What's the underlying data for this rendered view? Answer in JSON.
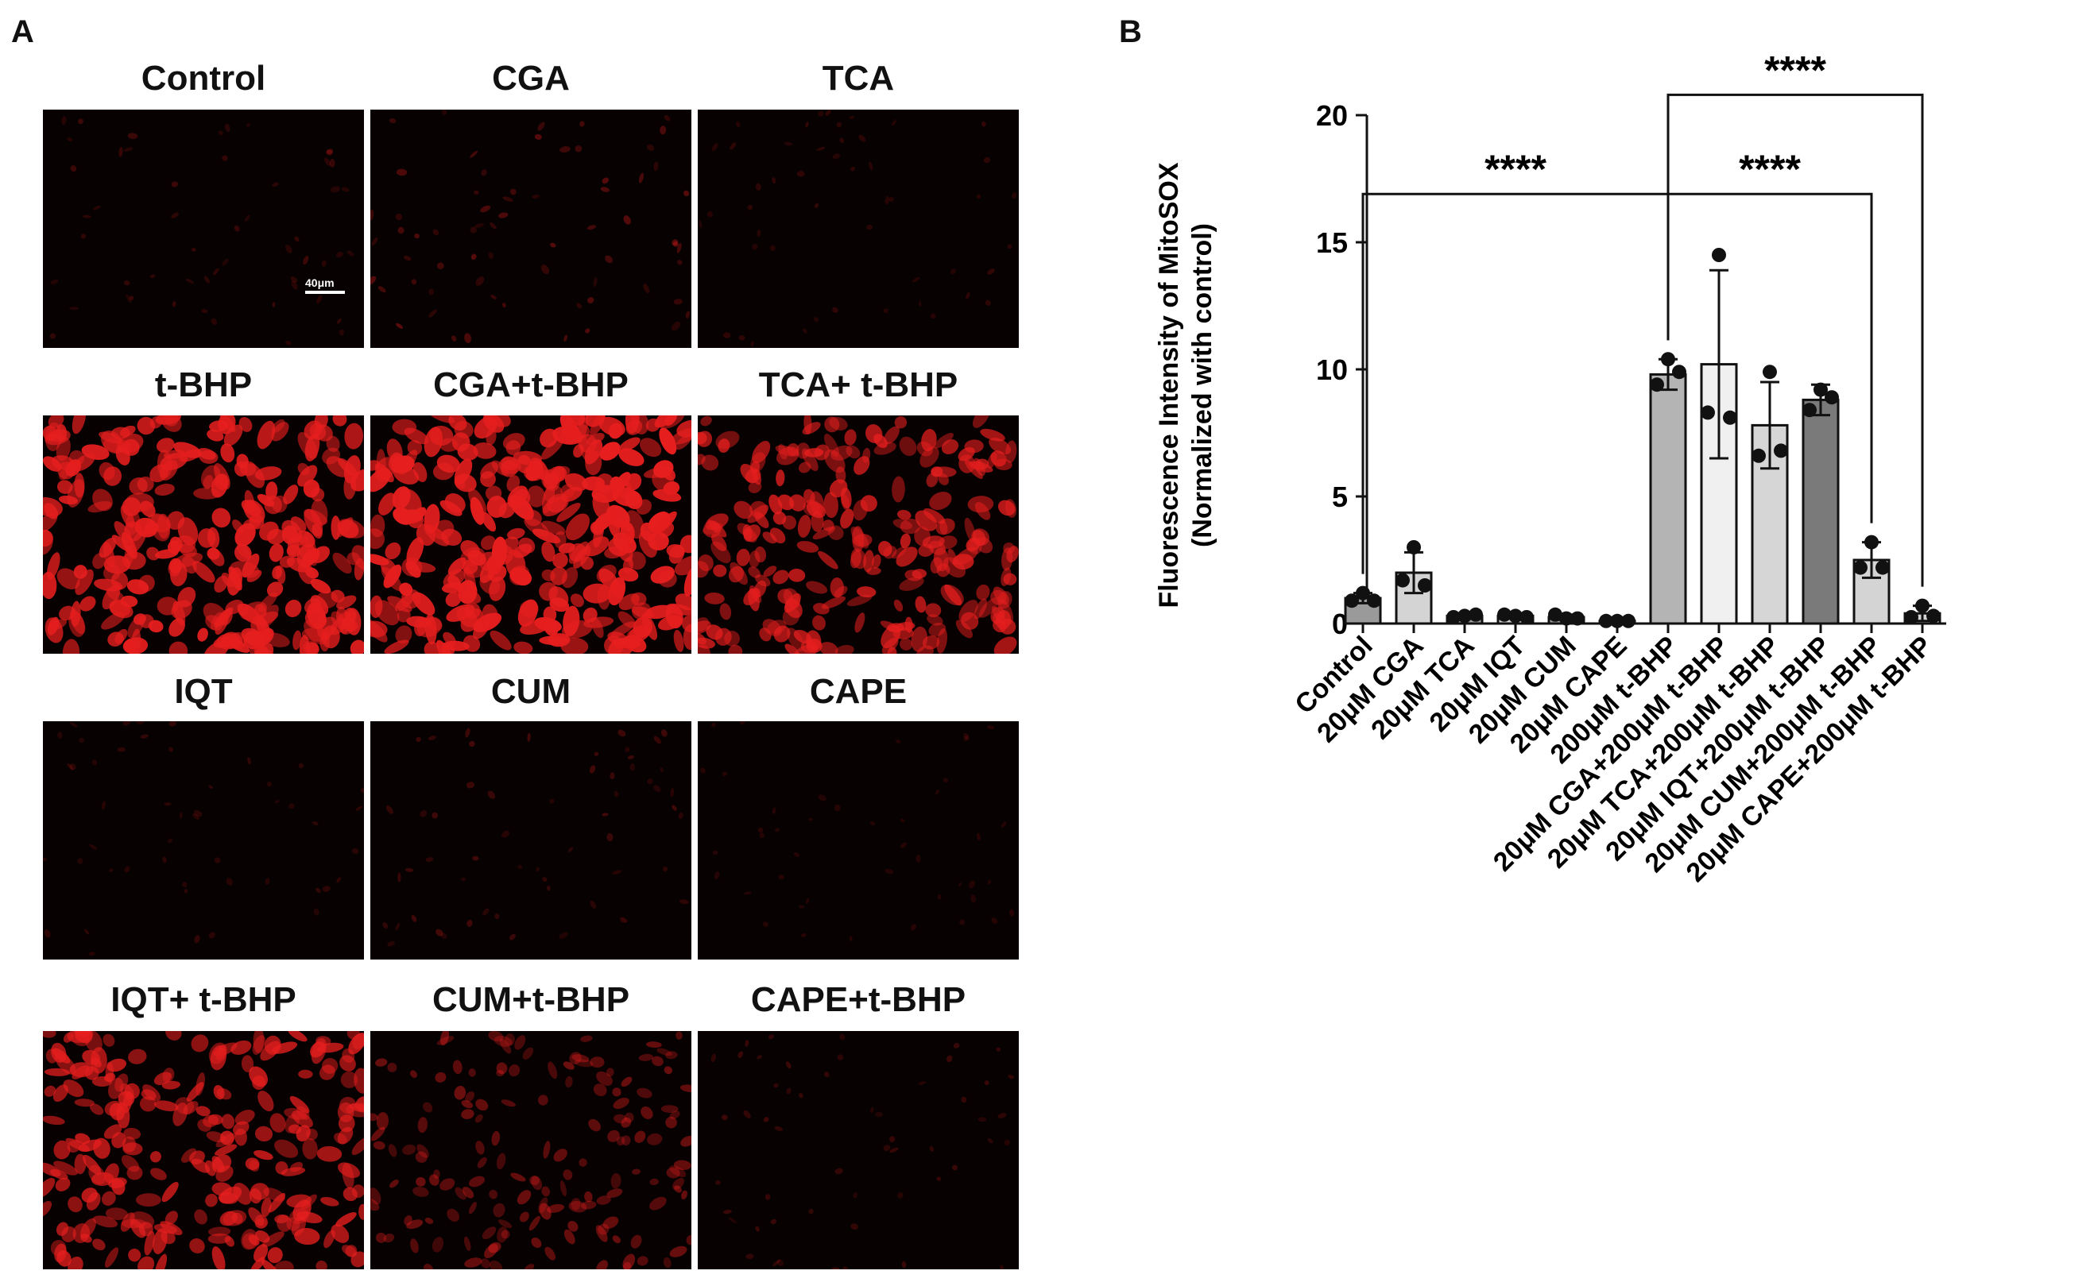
{
  "panel_a": {
    "letter": "A",
    "scale_bar": "40μm",
    "images": [
      {
        "label": "Control",
        "intensity": 0.05
      },
      {
        "label": "CGA",
        "intensity": 0.1
      },
      {
        "label": "TCA",
        "intensity": 0.03
      },
      {
        "label": "t-BHP",
        "intensity": 0.95
      },
      {
        "label": "CGA+t-BHP",
        "intensity": 1.0
      },
      {
        "label": "TCA+ t-BHP",
        "intensity": 0.8
      },
      {
        "label": "IQT",
        "intensity": 0.03
      },
      {
        "label": "CUM",
        "intensity": 0.06
      },
      {
        "label": "CAPE",
        "intensity": 0.01
      },
      {
        "label": "IQT+ t-BHP",
        "intensity": 0.8
      },
      {
        "label": "CUM+t-BHP",
        "intensity": 0.45
      },
      {
        "label": "CAPE+t-BHP",
        "intensity": 0.05
      }
    ]
  },
  "panel_b": {
    "letter": "B",
    "chart_data": {
      "type": "bar",
      "ylabel_line1": "Fluorescence Intensity of  MitoSOX",
      "ylabel_line2": "(Normalized with control)",
      "ylim": [
        0,
        20
      ],
      "yticks": [
        "0",
        "5",
        "10",
        "15",
        "20"
      ],
      "categories": [
        "Control",
        "20μM CGA",
        "20μM TCA",
        "20μM IQT",
        "20μM CUM",
        "20μM CAPE",
        "200μM t-BHP",
        "20μM CGA+200μM t-BHP",
        "20μM TCA+200μM t-BHP",
        "20μM IQT+200μM t-BHP",
        "20μM CUM+200μM t-BHP",
        "20μM CAPE+200μM t-BHP"
      ],
      "values": [
        1.0,
        2.0,
        0.3,
        0.3,
        0.25,
        0.1,
        9.8,
        10.2,
        7.8,
        8.8,
        2.5,
        0.4
      ],
      "errors": [
        0.2,
        0.8,
        0.05,
        0.05,
        0.1,
        0.03,
        0.6,
        3.7,
        1.7,
        0.6,
        0.7,
        0.3
      ],
      "points": [
        [
          1.2,
          0.9,
          0.9
        ],
        [
          3.0,
          1.7,
          1.5
        ],
        [
          0.3,
          0.25,
          0.35
        ],
        [
          0.3,
          0.35,
          0.25
        ],
        [
          0.2,
          0.35,
          0.2
        ],
        [
          0.1,
          0.1,
          0.1
        ],
        [
          10.4,
          9.4,
          9.9
        ],
        [
          14.5,
          8.3,
          8.1
        ],
        [
          9.9,
          6.6,
          6.8
        ],
        [
          9.2,
          8.4,
          8.9
        ],
        [
          3.2,
          2.2,
          2.2
        ],
        [
          0.7,
          0.25,
          0.3
        ]
      ],
      "bar_colors": [
        "#9a9a9a",
        "#d4d4d4",
        "#9a9a9a",
        "#d4d4d4",
        "#9a9a9a",
        "#d4d4d4",
        "#b4b4b4",
        "#f0f0f0",
        "#d6d6d6",
        "#7a7a7a",
        "#d4d4d4",
        "#d4d4d4"
      ],
      "significance": [
        {
          "from": 0,
          "to": 6,
          "text": "****"
        },
        {
          "from": 6,
          "to": 10,
          "text": "****"
        },
        {
          "from": 6,
          "to": 11,
          "text": "****"
        }
      ]
    }
  }
}
